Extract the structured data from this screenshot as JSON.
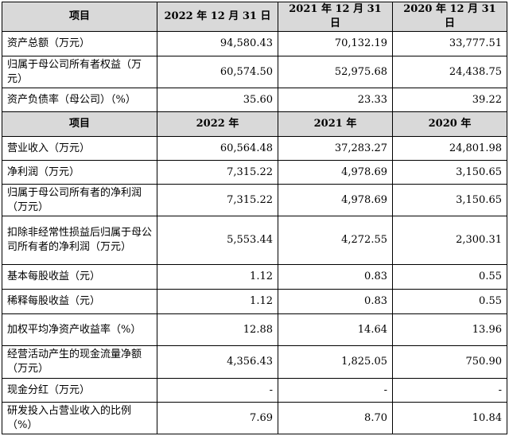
{
  "section1": {
    "headers": [
      "项目",
      "2022 年 12 月 31 日",
      "2021 年 12 月 31 日",
      "2020 年 12 月 31 日"
    ],
    "rows": [
      {
        "label": "资产总额（万元）",
        "values": [
          "94,580.43",
          "70,132.19",
          "33,777.51"
        ]
      },
      {
        "label": "归属于母公司所有者权益（万元）",
        "values": [
          "60,574.50",
          "52,975.68",
          "24,438.75"
        ]
      },
      {
        "label": "资产负债率（母公司）（%）",
        "values": [
          "35.60",
          "23.33",
          "39.22"
        ]
      }
    ]
  },
  "section2": {
    "headers": [
      "项目",
      "2022 年",
      "2021 年",
      "2020 年"
    ],
    "rows": [
      {
        "label": "营业收入（万元）",
        "values": [
          "60,564.48",
          "37,283.27",
          "24,801.98"
        ]
      },
      {
        "label": "净利润（万元）",
        "values": [
          "7,315.22",
          "4,978.69",
          "3,150.65"
        ]
      },
      {
        "label": "归属于母公司所有者的净利润（万元）",
        "values": [
          "7,315.22",
          "4,978.69",
          "3,150.65"
        ]
      },
      {
        "label": "扣除非经常性损益后归属于母公司所有者的净利润（万元）",
        "values": [
          "5,553.44",
          "4,272.55",
          "2,300.31"
        ]
      },
      {
        "label": "基本每股收益（元）",
        "values": [
          "1.12",
          "0.83",
          "0.55"
        ]
      },
      {
        "label": "稀释每股收益（元）",
        "values": [
          "1.12",
          "0.83",
          "0.55"
        ]
      },
      {
        "label": "加权平均净资产收益率（%）",
        "values": [
          "12.88",
          "14.64",
          "13.96"
        ]
      },
      {
        "label": "经营活动产生的现金流量净额（万元）",
        "values": [
          "4,356.43",
          "1,825.05",
          "750.90"
        ]
      },
      {
        "label": "现金分红（万元）",
        "values": [
          "-",
          "-",
          "-"
        ]
      },
      {
        "label": "研发投入占营业收入的比例（%）",
        "values": [
          "7.69",
          "8.70",
          "10.84"
        ]
      }
    ]
  }
}
